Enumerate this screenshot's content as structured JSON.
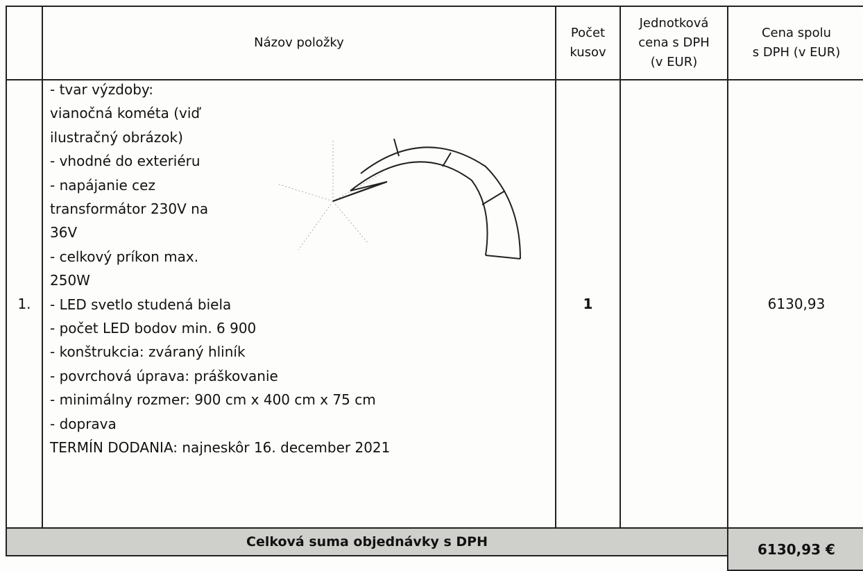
{
  "table": {
    "header": [
      [
        "Názov položky"
      ],
      [
        "Počet",
        "kusov"
      ],
      [
        "Jednotková",
        "cena s DPH",
        "(v EUR)"
      ],
      [
        "Cena spolu",
        "s DPH (v EUR)"
      ]
    ],
    "row": {
      "number": "1.",
      "description": [
        "- tvar výzdoby:",
        "vianočná kométa (viď",
        "ilustračný obrázok)",
        "- vhodné do exteriéru",
        "- napájanie cez",
        "transformátor 230V na",
        "36V",
        "- celkový príkon max.",
        "250W",
        "- LED svetlo studená biela",
        "- počet LED bodov min. 6 900",
        "- konštrukcia: zváraný hliník",
        "- povrchová úprava: práškovanie",
        "- minimálny rozmer: 900 cm x 400 cm x 75 cm",
        "- doprava",
        "TERMÍN DODANIA: najneskôr 16. december 2021"
      ],
      "quantity": "1",
      "total": "6130,93"
    },
    "footer": {
      "label": "Celková suma objednávky s DPH",
      "total": "6130,93 €"
    }
  }
}
